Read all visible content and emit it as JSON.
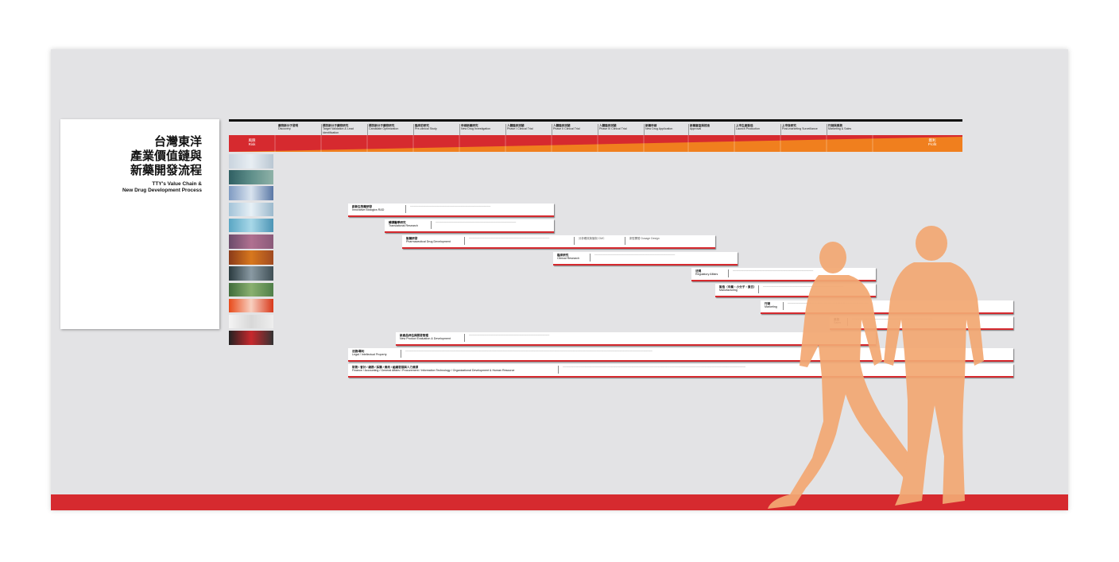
{
  "title": {
    "zh_lines": [
      "台灣東洋",
      "產業價值鏈與",
      "新藥開發流程"
    ],
    "en_lines": [
      "TTY's Value Chain &",
      "New Drug Development Process"
    ]
  },
  "stages": [
    {
      "zh": "藥物新分子發現",
      "en": "Discovery"
    },
    {
      "zh": "標的新分子藥物研究",
      "en": "Target Validation & Lead Identification"
    },
    {
      "zh": "標的新分子藥物研究",
      "en": "Candidate Optimization"
    },
    {
      "zh": "臨床前研究",
      "en": "Pre-clinical Study"
    },
    {
      "zh": "申請新藥研究",
      "en": "New Drug Investigation"
    },
    {
      "zh": "人體臨床試驗",
      "en": "Phase I Clinical Trial"
    },
    {
      "zh": "人體臨床試驗",
      "en": "Phase II Clinical Trial"
    },
    {
      "zh": "人體臨床試驗",
      "en": "Phase III Clinical Trial"
    },
    {
      "zh": "新藥申請",
      "en": "New Drug Application"
    },
    {
      "zh": "新藥審查與核准",
      "en": "Approval"
    },
    {
      "zh": "上市生產製造",
      "en": "Launch Production"
    },
    {
      "zh": "上市後研究",
      "en": "Post-marketing Surveillance"
    },
    {
      "zh": "行銷與業務",
      "en": "Marketing & Sales"
    }
  ],
  "bar": {
    "risk_zh": "風險",
    "risk_en": "Risk",
    "profit_zh": "獲利",
    "profit_en": "Profit",
    "colors": {
      "red": "#d62a2f",
      "orange": "#f07f1e"
    }
  },
  "rows": [
    {
      "zh": "創新生物藥研發",
      "en": "Innovative Biologics R&D"
    },
    {
      "zh": "轉譯醫學研究",
      "en": "Translational Research"
    },
    {
      "zh": "製藥研發",
      "en": "Pharmaceutical Drug Development",
      "extra1": "分析確效與管制 CMC",
      "extra2": "劑型開發 Dosage Design"
    },
    {
      "zh": "臨床研究",
      "en": "Clinical Research"
    },
    {
      "zh": "法規",
      "en": "Regulatory Affairs"
    },
    {
      "zh": "製造（中藥・小分子・蛋白）",
      "en": "Manufacturing"
    },
    {
      "zh": "行銷",
      "en": "Marketing"
    },
    {
      "zh": "業務",
      "en": "Sales"
    },
    {
      "zh": "新產品評估與開發管理",
      "en": "New Product Evaluation & Development"
    },
    {
      "zh": "法務/專利",
      "en": "Legal / Intellectual Property"
    },
    {
      "zh": "財務 / 會計 / 總務 / 採購 / 資訊 / 組織發展與人力資源",
      "en": "Finance / Accounting / General Affairs / Procurement / Information Technology / Organizational Development & Human Resource"
    }
  ],
  "colors": {
    "accent": "#d62a2f",
    "orange": "#f07f1e",
    "silhouette": "#f3a873",
    "wall": "#e3e3e5"
  }
}
